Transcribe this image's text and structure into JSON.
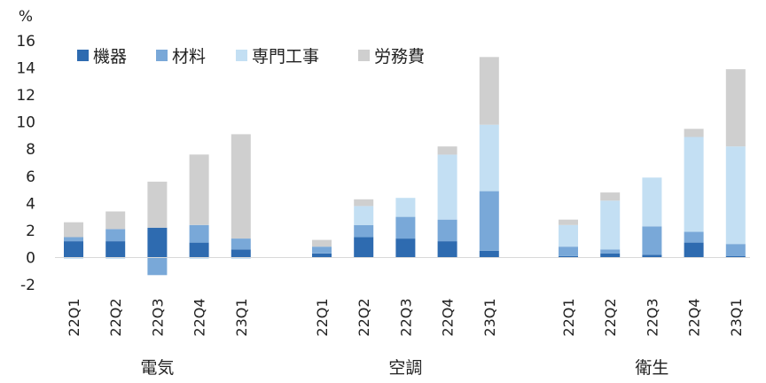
{
  "chart_data": {
    "type": "bar",
    "stacked": true,
    "unit": "%",
    "ylim": [
      -2,
      16
    ],
    "yticks": [
      -2,
      0,
      2,
      4,
      6,
      8,
      10,
      12,
      14,
      16
    ],
    "grid": false,
    "legend_position": "top-left",
    "colors": {
      "機器": "#2e6bb0",
      "材料": "#79a8d8",
      "専門工事": "#c3dff3",
      "労務費": "#cfcfcf"
    },
    "series_names": [
      "機器",
      "材料",
      "専門工事",
      "労務費"
    ],
    "groups": [
      {
        "name": "電気",
        "categories": [
          "22Q1",
          "22Q2",
          "22Q3",
          "22Q4",
          "23Q1"
        ],
        "series": [
          {
            "name": "機器",
            "values": [
              1.2,
              1.2,
              2.2,
              1.1,
              0.6
            ]
          },
          {
            "name": "材料",
            "values": [
              0.3,
              0.9,
              -1.3,
              1.3,
              0.8
            ]
          },
          {
            "name": "専門工事",
            "values": [
              -0.1,
              -0.1,
              0.0,
              -0.1,
              -0.1
            ]
          },
          {
            "name": "労務費",
            "values": [
              1.1,
              1.3,
              3.4,
              5.2,
              7.7
            ]
          }
        ]
      },
      {
        "name": "空調",
        "categories": [
          "22Q1",
          "22Q2",
          "22Q3",
          "22Q4",
          "23Q1"
        ],
        "series": [
          {
            "name": "機器",
            "values": [
              0.3,
              1.5,
              1.4,
              1.2,
              0.5
            ]
          },
          {
            "name": "材料",
            "values": [
              0.5,
              0.9,
              1.6,
              1.6,
              4.4
            ]
          },
          {
            "name": "専門工事",
            "values": [
              0.0,
              1.4,
              1.4,
              4.8,
              4.9
            ]
          },
          {
            "name": "労務費",
            "values": [
              0.5,
              0.5,
              0.0,
              0.6,
              5.0
            ]
          }
        ]
      },
      {
        "name": "衛生",
        "categories": [
          "22Q1",
          "22Q2",
          "22Q3",
          "22Q4",
          "23Q1"
        ],
        "series": [
          {
            "name": "機器",
            "values": [
              0.1,
              0.3,
              0.2,
              1.1,
              0.1
            ]
          },
          {
            "name": "材料",
            "values": [
              0.7,
              0.3,
              2.1,
              0.8,
              0.9
            ]
          },
          {
            "name": "専門工事",
            "values": [
              1.6,
              3.6,
              3.6,
              7.0,
              7.2
            ]
          },
          {
            "name": "労務費",
            "values": [
              0.4,
              0.6,
              0.0,
              0.6,
              5.7
            ]
          }
        ]
      }
    ]
  }
}
